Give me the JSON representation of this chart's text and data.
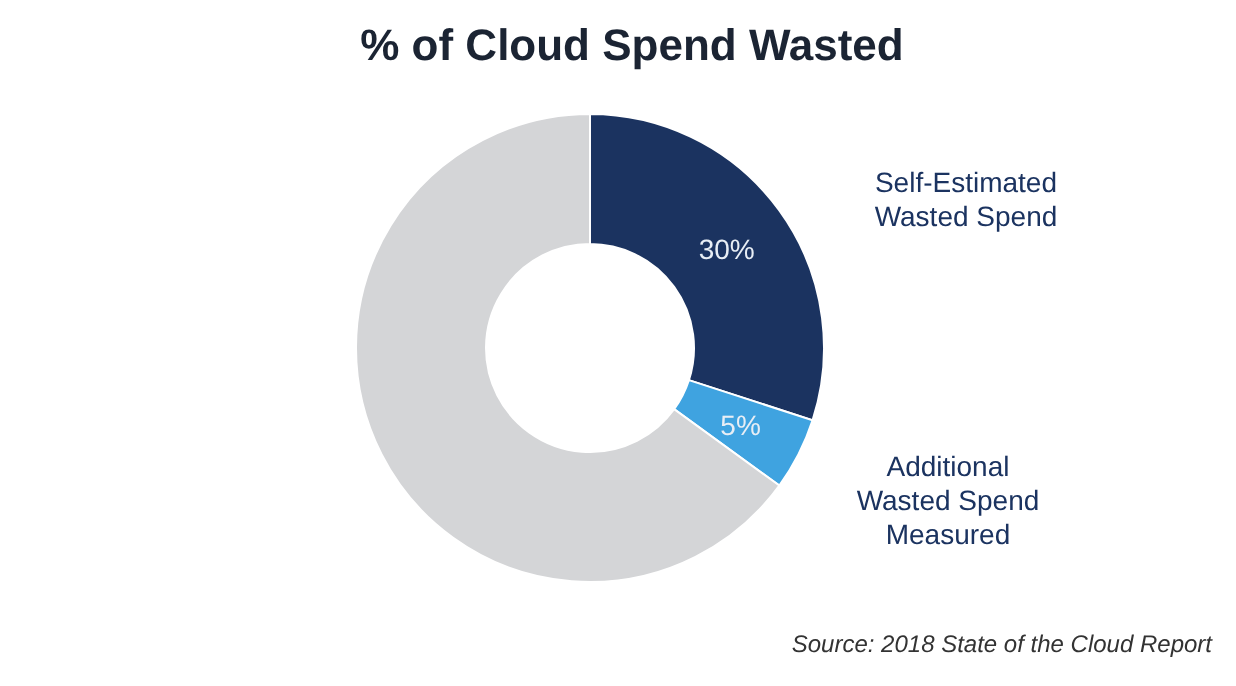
{
  "chart_data": {
    "type": "donut",
    "title": "% of Cloud Spend Wasted",
    "categories": [
      "Self-Estimated\nWasted Spend",
      "Additional\nWasted Spend\nMeasured",
      null
    ],
    "values": [
      30,
      5,
      65
    ],
    "colors": [
      "#1b3360",
      "#3fa3e0",
      "#d4d5d7"
    ],
    "value_labels": [
      "30%",
      "5%",
      null
    ],
    "annotations": [
      "Source: 2018 State of the Cloud Report"
    ]
  }
}
